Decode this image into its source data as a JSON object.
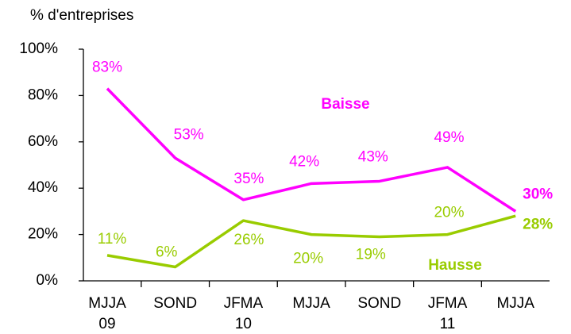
{
  "chart_data": {
    "type": "line",
    "y_axis_label": "% d'entreprises",
    "categories": [
      "MJJA\n09",
      "SOND",
      "JFMA\n10",
      "MJJA",
      "SOND",
      "JFMA\n11",
      "MJJA"
    ],
    "series": [
      {
        "name": "Baisse",
        "color": "#ff00ff",
        "values": [
          83,
          53,
          35,
          42,
          43,
          49,
          30
        ],
        "value_labels": [
          "83%",
          "53%",
          "35%",
          "42%",
          "43%",
          "49%",
          "30%"
        ]
      },
      {
        "name": "Hausse",
        "color": "#99cc00",
        "values": [
          11,
          6,
          26,
          20,
          19,
          20,
          28
        ],
        "value_labels": [
          "11%",
          "6%",
          "26%",
          "20%",
          "19%",
          "20%",
          "28%"
        ]
      }
    ],
    "ylim": [
      0,
      100
    ],
    "yticks": [
      {
        "value": 0,
        "label": "0%"
      },
      {
        "value": 20,
        "label": "20%"
      },
      {
        "value": 40,
        "label": "40%"
      },
      {
        "value": 60,
        "label": "60%"
      },
      {
        "value": 80,
        "label": "80%"
      },
      {
        "value": 100,
        "label": "100%"
      }
    ],
    "grid": false
  }
}
